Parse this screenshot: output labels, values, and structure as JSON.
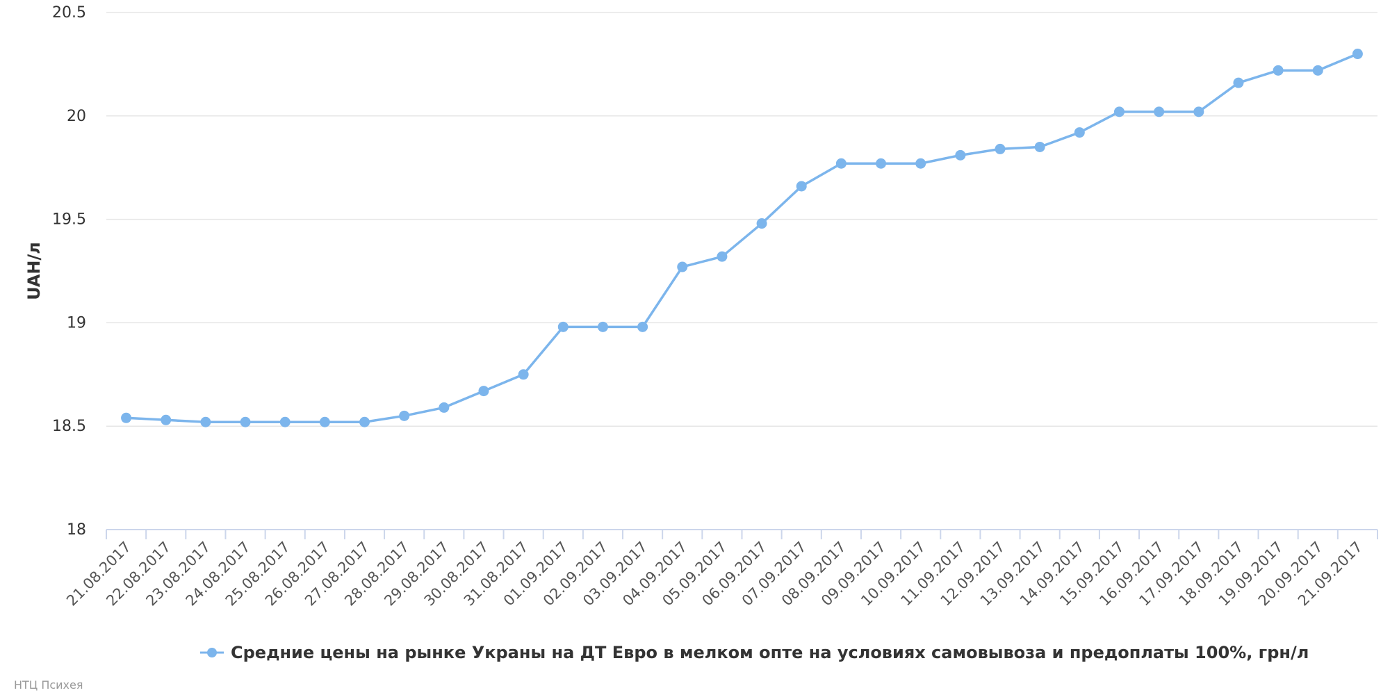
{
  "chart_data": {
    "type": "line",
    "ylabel": "UAH/л",
    "xlabel": "",
    "ylim": [
      18,
      20.5
    ],
    "y_ticks": [
      "18",
      "18.5",
      "19",
      "19.5",
      "20",
      "20.5"
    ],
    "grid": true,
    "legend_position": "bottom-center",
    "categories": [
      "21.08.2017",
      "22.08.2017",
      "23.08.2017",
      "24.08.2017",
      "25.08.2017",
      "26.08.2017",
      "27.08.2017",
      "28.08.2017",
      "29.08.2017",
      "30.08.2017",
      "31.08.2017",
      "01.09.2017",
      "02.09.2017",
      "03.09.2017",
      "04.09.2017",
      "05.09.2017",
      "06.09.2017",
      "07.09.2017",
      "08.09.2017",
      "09.09.2017",
      "10.09.2017",
      "11.09.2017",
      "12.09.2017",
      "13.09.2017",
      "14.09.2017",
      "15.09.2017",
      "16.09.2017",
      "17.09.2017",
      "18.09.2017",
      "19.09.2017",
      "20.09.2017",
      "21.09.2017"
    ],
    "series": [
      {
        "name": "Средние цены на рынке Украны на ДТ Евро в мелком опте на условиях самовывоза и предоплаты 100%, грн/л",
        "color": "#7cb5ec",
        "values": [
          18.54,
          18.53,
          18.52,
          18.52,
          18.52,
          18.52,
          18.52,
          18.55,
          18.59,
          18.67,
          18.75,
          18.98,
          18.98,
          18.98,
          19.27,
          19.32,
          19.48,
          19.66,
          19.77,
          19.77,
          19.77,
          19.81,
          19.84,
          19.85,
          19.92,
          20.02,
          20.02,
          20.02,
          20.16,
          20.22,
          20.22,
          20.3
        ]
      }
    ]
  },
  "credits": "НТЦ Психея",
  "colors": {
    "series": "#7cb5ec",
    "grid": "#e6e6e6",
    "axis": "#ccd6eb"
  }
}
